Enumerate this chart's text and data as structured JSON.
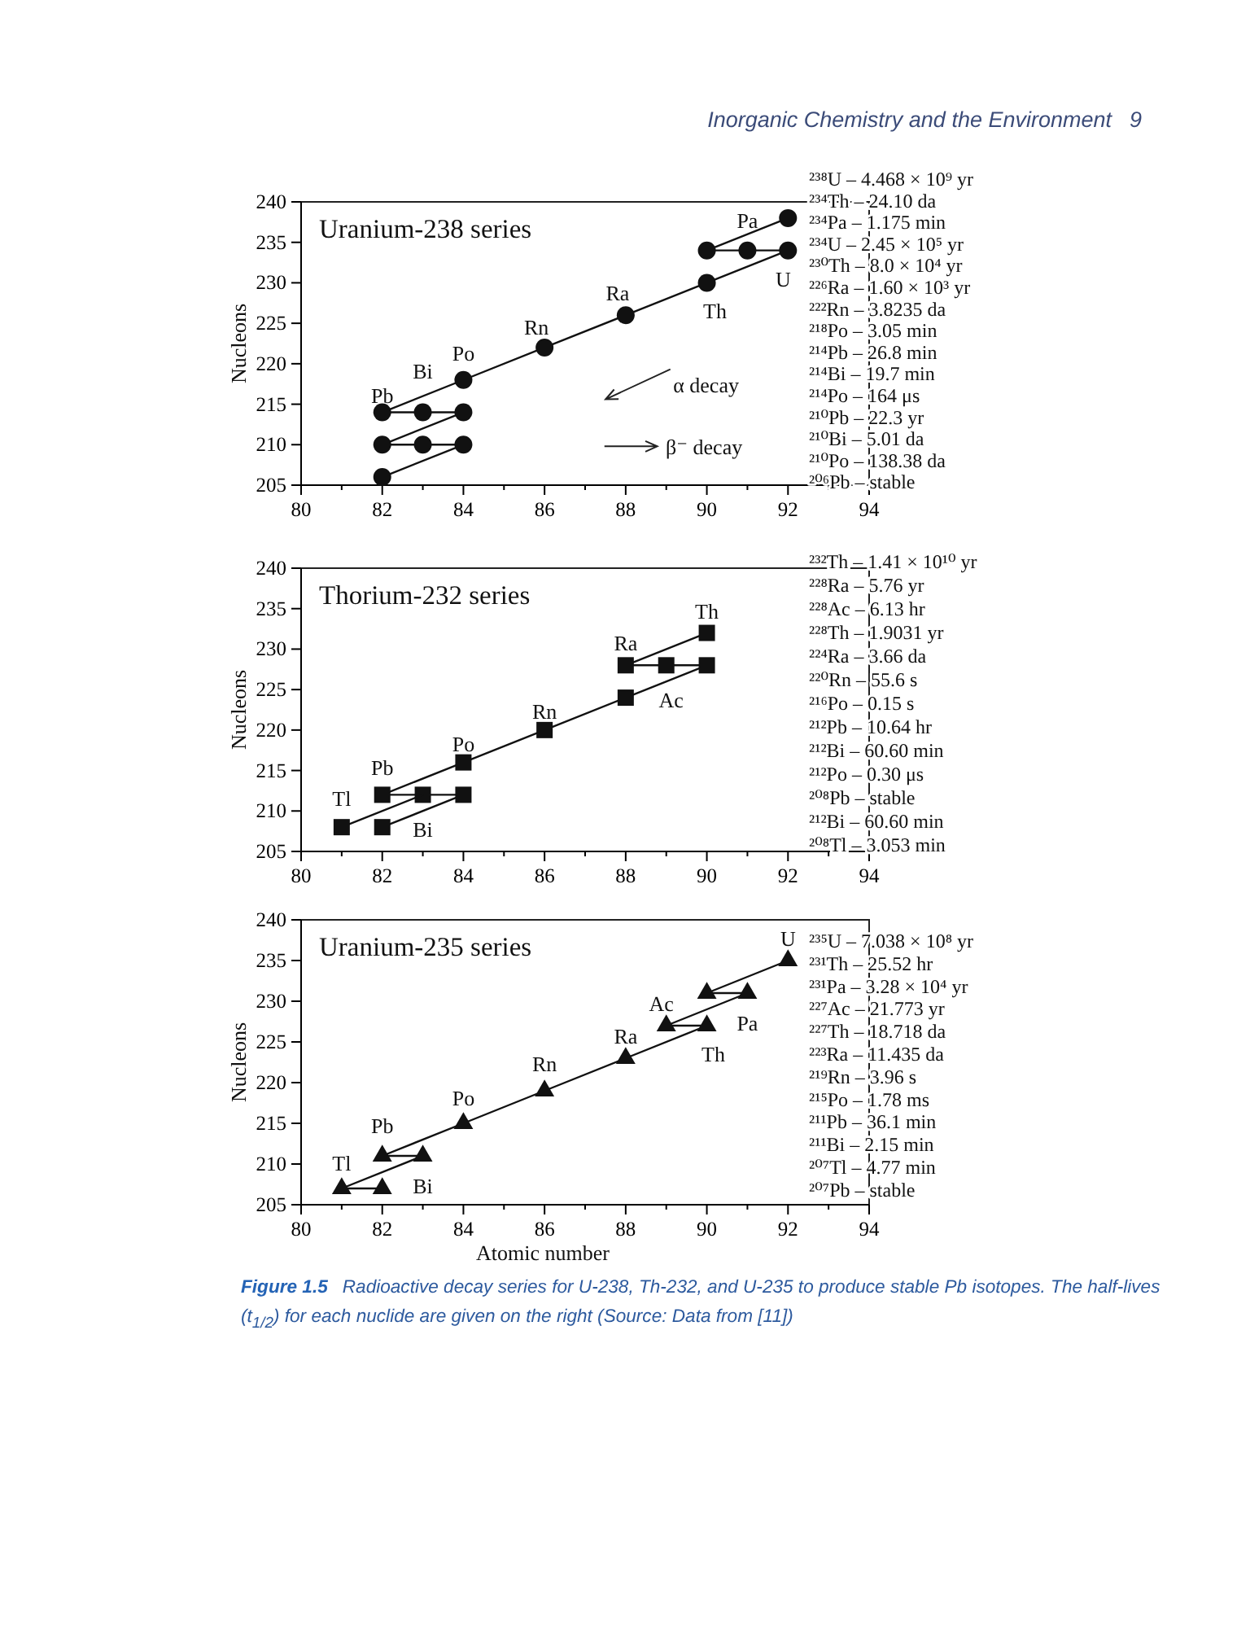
{
  "chart_data": [
    {
      "type": "line",
      "title": "Uranium-238 series",
      "ylabel": "Nucleons",
      "marker": "circle",
      "xlim": [
        80,
        94
      ],
      "xticks": [
        80,
        {
          "value": 81,
          "label": null
        },
        82,
        {
          "value": 83,
          "label": null
        },
        84,
        {
          "value": 85,
          "label": null
        },
        86,
        {
          "value": 87,
          "label": null
        },
        88,
        {
          "value": 89,
          "label": null
        },
        90,
        {
          "value": 91,
          "label": null
        },
        92,
        {
          "value": 93,
          "label": null
        },
        94
      ],
      "ylim": [
        205,
        240
      ],
      "yticks": [
        205,
        210,
        215,
        220,
        225,
        230,
        235,
        240
      ],
      "series": [
        {
          "color": "#111111",
          "x": [
            92,
            90,
            91,
            92,
            90,
            88,
            86,
            84,
            82,
            83,
            84,
            82,
            83,
            84,
            82
          ],
          "values": [
            238,
            234,
            234,
            234,
            230,
            226,
            222,
            218,
            214,
            214,
            214,
            210,
            210,
            210,
            206
          ]
        }
      ],
      "annotations": [
        "Inorganic Chemistry and the Environment",
        "9",
        "α decay",
        "β⁻ decay",
        {
          "text": "Pa",
          "x": 91,
          "y": 234
        },
        {
          "text": "U",
          "x": 92,
          "y": 234
        },
        {
          "text": "Th",
          "x": 90,
          "y": 230
        },
        {
          "text": "Ra",
          "x": 88,
          "y": 226
        },
        {
          "text": "Rn",
          "x": 86,
          "y": 222
        },
        {
          "text": "Po",
          "x": 84,
          "y": 218
        },
        {
          "text": "Bi",
          "x": 83,
          "y": 214
        },
        {
          "text": "Pb",
          "x": 82,
          "y": 214
        },
        "²³⁸U – 4.468 × 10⁹ yr",
        "²³⁴Th – 24.10 da",
        "²³⁴Pa – 1.175 min",
        "²³⁴U – 2.45 × 10⁵ yr",
        "²³⁰Th – 8.0 × 10⁴ yr",
        "²²⁶Ra – 1.60 × 10³ yr",
        "²²²Rn – 3.8235 da",
        "²¹⁸Po – 3.05 min",
        "²¹⁴Pb – 26.8 min",
        "²¹⁴Bi – 19.7 min",
        "²¹⁴Po – 164 μs",
        "²¹⁰Pb – 22.3 yr",
        "²¹⁰Bi – 5.01 da",
        "²¹⁰Po – 138.38 da",
        "²⁰⁶Pb – stable"
      ]
    },
    {
      "type": "line",
      "title": "Thorium-232 series",
      "ylabel": "Nucleons",
      "marker": "square",
      "xlim": [
        80,
        94
      ],
      "xticks": [
        80,
        {
          "value": 81,
          "label": null
        },
        82,
        {
          "value": 83,
          "label": null
        },
        84,
        {
          "value": 85,
          "label": null
        },
        86,
        {
          "value": 87,
          "label": null
        },
        88,
        {
          "value": 89,
          "label": null
        },
        90,
        {
          "value": 91,
          "label": null
        },
        92,
        {
          "value": 93,
          "label": null
        },
        94
      ],
      "ylim": [
        205,
        240
      ],
      "yticks": [
        205,
        210,
        215,
        220,
        225,
        230,
        235,
        240
      ],
      "series": [
        {
          "color": "#111111",
          "x": [
            90,
            88,
            89,
            90,
            88,
            86,
            84,
            82,
            83,
            84,
            82
          ],
          "values": [
            232,
            228,
            228,
            228,
            224,
            220,
            216,
            212,
            212,
            212,
            208
          ]
        },
        {
          "type": "line",
          "marker": "none",
          "color": "#111111",
          "x": [
            83,
            81
          ],
          "values": [
            212,
            208
          ]
        },
        {
          "type": "scatter",
          "color": "#111111",
          "x": [
            81
          ],
          "values": [
            208
          ]
        }
      ],
      "annotations": [
        {
          "text": "Th",
          "x": 90,
          "y": 232
        },
        {
          "text": "Ra",
          "x": 88,
          "y": 228
        },
        {
          "text": "Ac",
          "x": 89,
          "y": 228
        },
        {
          "text": "Rn",
          "x": 86,
          "y": 220
        },
        {
          "text": "Po",
          "x": 84,
          "y": 216
        },
        {
          "text": "Pb",
          "x": 82,
          "y": 212
        },
        {
          "text": "Tl",
          "x": 81,
          "y": 208
        },
        {
          "text": "Bi",
          "x": 83,
          "y": 212
        },
        "²³²Th – 1.41 × 10¹⁰ yr",
        "²²⁸Ra – 5.76 yr",
        "²²⁸Ac – 6.13 hr",
        "²²⁸Th – 1.9031 yr",
        "²²⁴Ra – 3.66 da",
        "²²⁰Rn – 55.6 s",
        "²¹⁶Po – 0.15 s",
        "²¹²Pb – 10.64 hr",
        "²¹²Bi – 60.60 min",
        "²¹²Po – 0.30 μs",
        "²⁰⁸Pb – stable",
        "²¹²Bi – 60.60 min",
        "²⁰⁸Tl – 3.053 min"
      ]
    },
    {
      "type": "line",
      "title": "Uranium-235 series",
      "xlabel": "Atomic number",
      "ylabel": "Nucleons",
      "marker": "triangle",
      "xlim": [
        80,
        94
      ],
      "xticks": [
        80,
        {
          "value": 81,
          "label": null
        },
        82,
        {
          "value": 83,
          "label": null
        },
        84,
        {
          "value": 85,
          "label": null
        },
        86,
        {
          "value": 87,
          "label": null
        },
        88,
        {
          "value": 89,
          "label": null
        },
        90,
        {
          "value": 91,
          "label": null
        },
        92,
        {
          "value": 93,
          "label": null
        },
        94
      ],
      "ylim": [
        205,
        240
      ],
      "yticks": [
        205,
        210,
        215,
        220,
        225,
        230,
        235,
        240
      ],
      "series": [
        {
          "color": "#111111",
          "x": [
            92,
            90,
            91,
            89,
            90,
            88,
            86,
            84,
            82,
            83,
            81,
            82
          ],
          "values": [
            235,
            231,
            231,
            227,
            227,
            223,
            219,
            215,
            211,
            211,
            207,
            207
          ]
        }
      ],
      "annotations": [
        {
          "text": "U",
          "x": 92,
          "y": 235
        },
        {
          "text": "Ac",
          "x": 89,
          "y": 227
        },
        {
          "text": "Pa",
          "x": 91,
          "y": 231
        },
        {
          "text": "Ra",
          "x": 88,
          "y": 223
        },
        {
          "text": "Th",
          "x": 90,
          "y": 227
        },
        {
          "text": "Rn",
          "x": 86,
          "y": 219
        },
        {
          "text": "Po",
          "x": 84,
          "y": 215
        },
        {
          "text": "Pb",
          "x": 82,
          "y": 211
        },
        {
          "text": "Tl",
          "x": 81,
          "y": 207
        },
        {
          "text": "Bi",
          "x": 83,
          "y": 211
        },
        "²³⁵U – 7.038 × 10⁸ yr",
        "²³¹Th – 25.52 hr",
        "²³¹Pa – 3.28 × 10⁴ yr",
        "²²⁷Ac – 21.773 yr",
        "²²⁷Th – 18.718 da",
        "²²³Ra – 11.435 da",
        "²¹⁹Rn – 3.96 s",
        "²¹⁵Po – 1.78 ms",
        "²¹¹Pb – 36.1 min",
        "²¹¹Bi – 2.15 min",
        "²⁰⁷Tl – 4.77 min",
        "²⁰⁷Pb – stable",
        "Figure 1.5",
        "Radioactive decay series for U-238, Th-232, and U-235 to produce stable Pb isotopes. The half-lives",
        "(t$_{1/2}$) for each nuclide are given on the right (Source: Data from [11])"
      ]
    }
  ]
}
